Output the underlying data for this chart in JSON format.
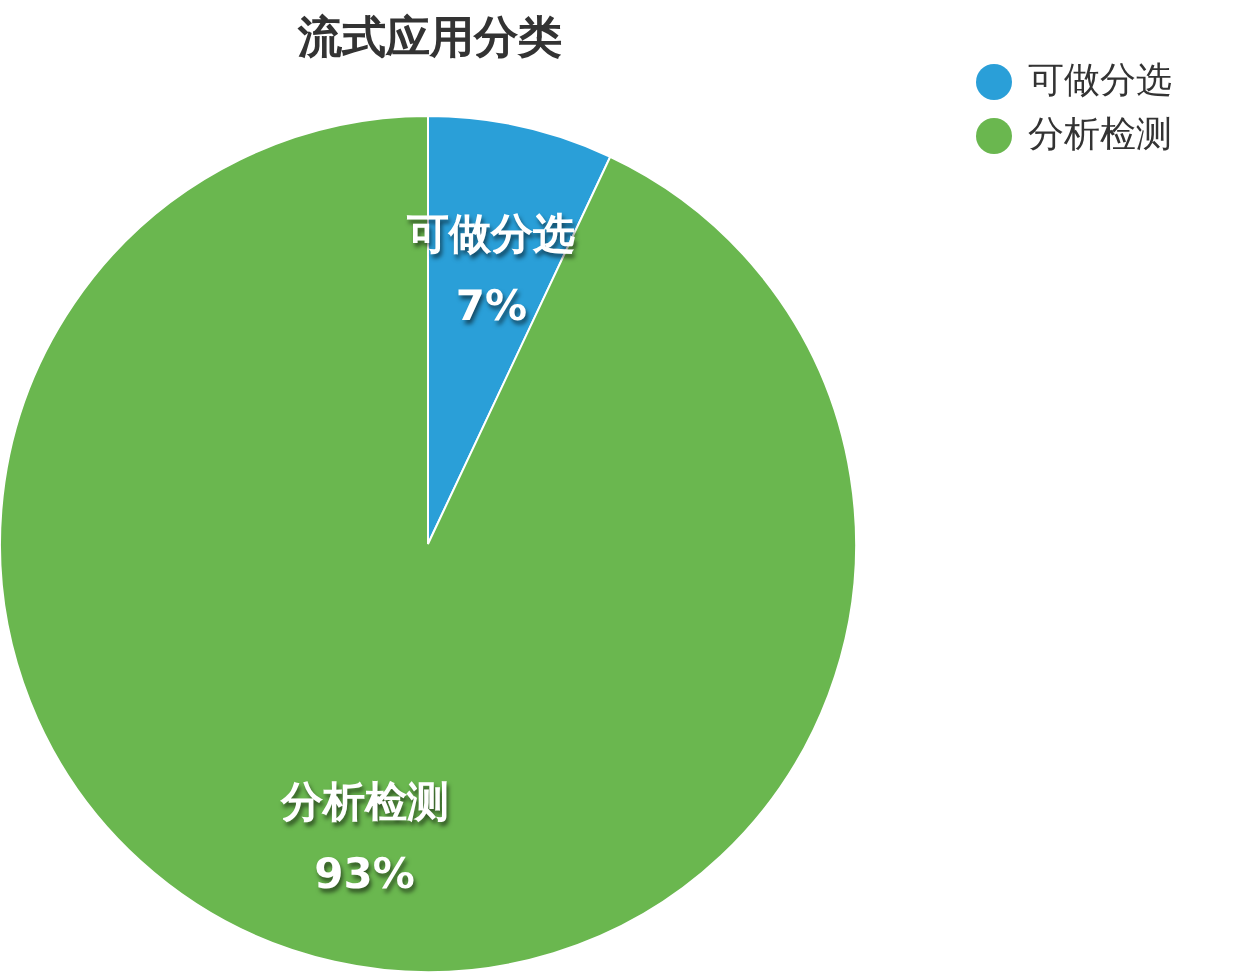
{
  "chart_data": {
    "type": "pie",
    "title": "流式应用分类",
    "categories": [
      "可做分选",
      "分析检测"
    ],
    "values": [
      7,
      93
    ],
    "colors": [
      "#2a9fd8",
      "#6ab74f"
    ],
    "value_labels": [
      "7%",
      "93%"
    ],
    "legend": "top right"
  }
}
